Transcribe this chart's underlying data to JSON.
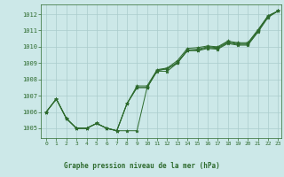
{
  "title": "Graphe pression niveau de la mer (hPa)",
  "background_color": "#cce8e8",
  "grid_color": "#aacccc",
  "line_color": "#2d6a2d",
  "xmin": -0.5,
  "xmax": 23.3,
  "ymin": 1004.4,
  "ymax": 1012.6,
  "yticks": [
    1005,
    1006,
    1007,
    1008,
    1009,
    1010,
    1011,
    1012
  ],
  "xticks": [
    0,
    1,
    2,
    3,
    4,
    5,
    6,
    7,
    8,
    9,
    10,
    11,
    12,
    13,
    14,
    15,
    16,
    17,
    18,
    19,
    20,
    21,
    22,
    23
  ],
  "series": [
    [
      1006.0,
      1006.8,
      1005.6,
      1005.0,
      1005.0,
      1005.3,
      1005.0,
      1004.85,
      1004.85,
      1004.85,
      1007.5,
      1008.55,
      1008.65,
      1009.0,
      1009.75,
      1009.8,
      1009.95,
      1009.9,
      1010.25,
      1010.15,
      1010.15,
      1010.95,
      1011.85,
      1012.2
    ],
    [
      1006.0,
      1006.8,
      1005.6,
      1005.0,
      1005.0,
      1005.3,
      1005.0,
      1004.85,
      1006.5,
      1007.5,
      1007.5,
      1008.55,
      1008.65,
      1009.05,
      1009.8,
      1009.85,
      1010.0,
      1009.95,
      1010.3,
      1010.2,
      1010.2,
      1011.0,
      1011.9,
      1012.2
    ],
    [
      1006.0,
      1006.8,
      1005.6,
      1005.0,
      1005.0,
      1005.3,
      1005.0,
      1004.85,
      1006.5,
      1007.6,
      1007.6,
      1008.6,
      1008.7,
      1009.15,
      1009.9,
      1009.95,
      1010.05,
      1010.0,
      1010.35,
      1010.25,
      1010.25,
      1011.05,
      1011.9,
      1012.2
    ],
    [
      1006.0,
      1006.8,
      1005.6,
      1005.0,
      1005.0,
      1005.3,
      1005.0,
      1004.85,
      1006.5,
      1007.5,
      1007.5,
      1008.5,
      1008.5,
      1009.0,
      1009.8,
      1009.75,
      1009.9,
      1009.85,
      1010.2,
      1010.1,
      1010.1,
      1010.9,
      1011.8,
      1012.2
    ]
  ],
  "figsize": [
    3.2,
    2.0
  ],
  "dpi": 100
}
